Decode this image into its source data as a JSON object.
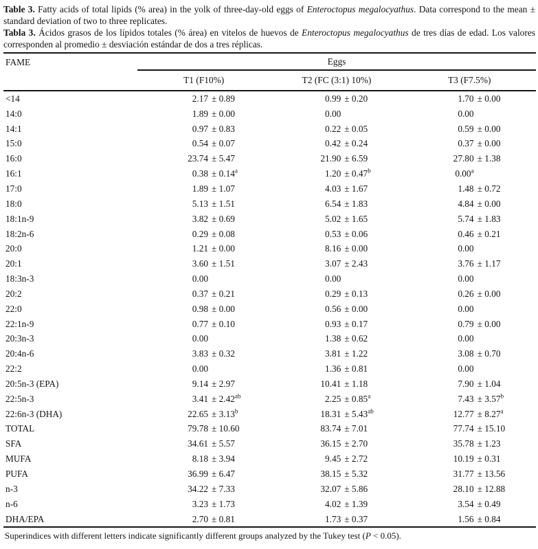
{
  "caption_en": {
    "label": "Table 3.",
    "text1": " Fatty acids of total lipids (% area) in the yolk of three-day-old eggs of ",
    "species": "Enteroctopus megalocyathus",
    "text2": ". Data correspond to the mean ± standard deviation of two to three replicates."
  },
  "caption_es": {
    "label": "Tabla 3.",
    "text1": " Ácidos grasos de los lípidos totales (% área) en vitelos de huevos de ",
    "species": "Enteroctopus megalocyathus",
    "text2": " de tres días de edad. Los valores corresponden al promedio ± desviación estándar de dos a tres réplicas."
  },
  "table": {
    "fame_label": "FAME",
    "group_label": "Eggs",
    "columns": [
      "T1 (F10%)",
      "T2 (FC (3:1) 10%)",
      "T3 (F7.5%)"
    ],
    "plus_minus": "±",
    "rows": [
      {
        "f": "<14",
        "c": [
          [
            "2.17",
            "0.89",
            ""
          ],
          [
            "0.99",
            "0.20",
            ""
          ],
          [
            "1.70",
            "0.00",
            ""
          ]
        ]
      },
      {
        "f": "14:0",
        "c": [
          [
            "1.89",
            "0.00",
            ""
          ],
          [
            "0.00",
            "",
            ""
          ],
          [
            "0.00",
            "",
            ""
          ]
        ]
      },
      {
        "f": "14:1",
        "c": [
          [
            "0.97",
            "0.83",
            ""
          ],
          [
            "0.22",
            "0.05",
            ""
          ],
          [
            "0.59",
            "0.00",
            ""
          ]
        ]
      },
      {
        "f": "15:0",
        "c": [
          [
            "0.54",
            "0.07",
            ""
          ],
          [
            "0.42",
            "0.24",
            ""
          ],
          [
            "0.37",
            "0.00",
            ""
          ]
        ]
      },
      {
        "f": "16:0",
        "c": [
          [
            "23.74",
            "5.47",
            ""
          ],
          [
            "21.90",
            "6.59",
            ""
          ],
          [
            "27.80",
            "1.38",
            ""
          ]
        ]
      },
      {
        "f": "16:1",
        "c": [
          [
            "0.38",
            "0.14",
            "a"
          ],
          [
            "1.20",
            "0.47",
            "b"
          ],
          [
            "0.00",
            "",
            "a"
          ]
        ]
      },
      {
        "f": "17:0",
        "c": [
          [
            "1.89",
            "1.07",
            ""
          ],
          [
            "4.03",
            "1.67",
            ""
          ],
          [
            "1.48",
            "0.72",
            ""
          ]
        ]
      },
      {
        "f": "18:0",
        "c": [
          [
            "5.13",
            "1.51",
            ""
          ],
          [
            "6.54",
            "1.83",
            ""
          ],
          [
            "4.84",
            "0.00",
            ""
          ]
        ]
      },
      {
        "f": "18:1n-9",
        "c": [
          [
            "3.82",
            "0.69",
            ""
          ],
          [
            "5.02",
            "1.65",
            ""
          ],
          [
            "5.74",
            "1.83",
            ""
          ]
        ]
      },
      {
        "f": "18:2n-6",
        "c": [
          [
            "0.29",
            "0.08",
            ""
          ],
          [
            "0.53",
            "0.06",
            ""
          ],
          [
            "0.46",
            "0.21",
            ""
          ]
        ]
      },
      {
        "f": "20:0",
        "c": [
          [
            "1.21",
            "0.00",
            ""
          ],
          [
            "8.16",
            "0.00",
            ""
          ],
          [
            "0.00",
            "",
            ""
          ]
        ]
      },
      {
        "f": "20:1",
        "c": [
          [
            "3.60",
            "1.51",
            ""
          ],
          [
            "3.07",
            "2.43",
            ""
          ],
          [
            "3.76",
            "1.17",
            ""
          ]
        ]
      },
      {
        "f": "18:3n-3",
        "c": [
          [
            "0.00",
            "",
            ""
          ],
          [
            "0.00",
            "",
            ""
          ],
          [
            "0.00",
            "",
            ""
          ]
        ]
      },
      {
        "f": "20:2",
        "c": [
          [
            "0.37",
            "0.21",
            ""
          ],
          [
            "0.29",
            "0.13",
            ""
          ],
          [
            "0.26",
            "0.00",
            ""
          ]
        ]
      },
      {
        "f": "22:0",
        "c": [
          [
            "0.98",
            "0.00",
            ""
          ],
          [
            "0.56",
            "0.00",
            ""
          ],
          [
            "0.00",
            "",
            ""
          ]
        ]
      },
      {
        "f": "22:1n-9",
        "c": [
          [
            "0.77",
            "0.10",
            ""
          ],
          [
            "0.93",
            "0.17",
            ""
          ],
          [
            "0.79",
            "0.00",
            ""
          ]
        ]
      },
      {
        "f": "20:3n-3",
        "c": [
          [
            "0.00",
            "",
            ""
          ],
          [
            "1.38",
            "0.62",
            ""
          ],
          [
            "0.00",
            "",
            ""
          ]
        ]
      },
      {
        "f": "20:4n-6",
        "c": [
          [
            "3.83",
            "0.32",
            ""
          ],
          [
            "3.81",
            "1.22",
            ""
          ],
          [
            "3.08",
            "0.70",
            ""
          ]
        ]
      },
      {
        "f": "22:2",
        "c": [
          [
            "0.00",
            "",
            ""
          ],
          [
            "1.36",
            "0.81",
            ""
          ],
          [
            "0.00",
            "",
            ""
          ]
        ]
      },
      {
        "f": "20:5n-3 (EPA)",
        "c": [
          [
            "9.14",
            "2.97",
            ""
          ],
          [
            "10.41",
            "1.18",
            ""
          ],
          [
            "7.90",
            "1.04",
            ""
          ]
        ]
      },
      {
        "f": "22:5n-3",
        "c": [
          [
            "3.41",
            "2.42",
            "ab"
          ],
          [
            "2.25",
            "0.85",
            "a"
          ],
          [
            "7.43",
            "3.57",
            "b"
          ]
        ]
      },
      {
        "f": "22:6n-3 (DHA)",
        "c": [
          [
            "22.65",
            "3.13",
            "b"
          ],
          [
            "18.31",
            "5.43",
            "ab"
          ],
          [
            "12.77",
            "8.27",
            "a"
          ]
        ]
      },
      {
        "f": "TOTAL",
        "c": [
          [
            "79.78",
            "10.60",
            ""
          ],
          [
            "83.74",
            "7.01",
            ""
          ],
          [
            "77.74",
            "15.10",
            ""
          ]
        ]
      },
      {
        "f": "SFA",
        "c": [
          [
            "34.61",
            "5.57",
            ""
          ],
          [
            "36.15",
            "2.70",
            ""
          ],
          [
            "35.78",
            "1.23",
            ""
          ]
        ]
      },
      {
        "f": "MUFA",
        "c": [
          [
            "8.18",
            "3.94",
            ""
          ],
          [
            "9.45",
            "2.72",
            ""
          ],
          [
            "10.19",
            "0.31",
            ""
          ]
        ]
      },
      {
        "f": "PUFA",
        "c": [
          [
            "36.99",
            "6.47",
            ""
          ],
          [
            "38.15",
            "5.32",
            ""
          ],
          [
            "31.77",
            "13.56",
            ""
          ]
        ]
      },
      {
        "f": "n-3",
        "c": [
          [
            "34.22",
            "7.33",
            ""
          ],
          [
            "32.07",
            "5.86",
            ""
          ],
          [
            "28.10",
            "12.88",
            ""
          ]
        ]
      },
      {
        "f": "n-6",
        "c": [
          [
            "3.23",
            "1.73",
            ""
          ],
          [
            "4.02",
            "1.39",
            ""
          ],
          [
            "3.54",
            "0.49",
            ""
          ]
        ]
      },
      {
        "f": "DHA/EPA",
        "c": [
          [
            "2.70",
            "0.81",
            ""
          ],
          [
            "1.73",
            "0.37",
            ""
          ],
          [
            "1.56",
            "0.84",
            ""
          ]
        ]
      }
    ]
  },
  "footnote": {
    "text1": "Superindices with different letters indicate significantly different groups analyzed by the Tukey test (",
    "p_symbol": "P",
    "text2": " < 0.05)."
  }
}
